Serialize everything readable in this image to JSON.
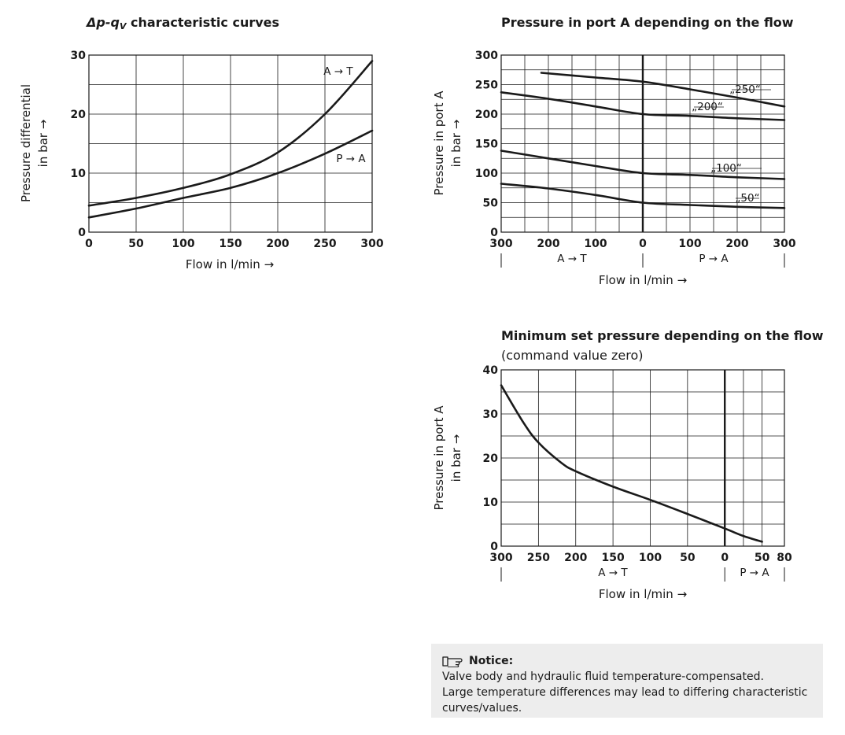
{
  "chart_data": [
    {
      "type": "line",
      "title_prefix": "Δp-q",
      "title_sub": "V",
      "title_rest": " characteristic curves",
      "xlabel": "Flow in l/min →",
      "ylabel": [
        "Pressure differential",
        "in bar →"
      ],
      "xlim": [
        0,
        300
      ],
      "ylim": [
        0,
        30
      ],
      "xticks": [
        "0",
        "50",
        "100",
        "150",
        "200",
        "250",
        "300"
      ],
      "yticks": [
        "0",
        "10",
        "20",
        "30"
      ],
      "grid": true,
      "series": [
        {
          "name": "A → T",
          "x": [
            0,
            50,
            100,
            150,
            200,
            250,
            300
          ],
          "y": [
            4.5,
            5.8,
            7.5,
            9.8,
            13.5,
            20,
            29
          ]
        },
        {
          "name": "P → A",
          "x": [
            0,
            50,
            100,
            150,
            200,
            250,
            300
          ],
          "y": [
            2.5,
            4,
            5.8,
            7.5,
            10,
            13.3,
            17.2
          ]
        }
      ]
    },
    {
      "type": "line",
      "title": "Pressure in port A depending on the flow",
      "xlabel": "Flow in l/min →",
      "ylabel": [
        "Pressure in port A",
        "in bar →"
      ],
      "xlim": [
        -300,
        300
      ],
      "ylim": [
        0,
        300
      ],
      "xticks": [
        "300",
        "200",
        "100",
        "0",
        "100",
        "200",
        "300"
      ],
      "yticks": [
        "0",
        "50",
        "100",
        "150",
        "200",
        "250",
        "300"
      ],
      "x_regions": [
        "A → T",
        "P → A"
      ],
      "grid": true,
      "series": [
        {
          "name": "„250“",
          "x": [
            -215,
            -100,
            0,
            100,
            200,
            300
          ],
          "y": [
            270,
            262,
            255,
            242,
            228,
            213
          ]
        },
        {
          "name": "„200“",
          "x": [
            -300,
            -200,
            -100,
            0,
            100,
            200,
            300
          ],
          "y": [
            237,
            226,
            213,
            200,
            197,
            193,
            190
          ]
        },
        {
          "name": "„100“",
          "x": [
            -300,
            -200,
            -100,
            0,
            100,
            200,
            300
          ],
          "y": [
            138,
            125,
            112,
            100,
            97,
            93,
            90
          ]
        },
        {
          "name": "„50“",
          "x": [
            -300,
            -200,
            -100,
            0,
            100,
            200,
            300
          ],
          "y": [
            82,
            74,
            63,
            50,
            46,
            43,
            41
          ]
        }
      ]
    },
    {
      "type": "line",
      "title": "Minimum set pressure depending on the flow",
      "subtitle": "(command value zero)",
      "xlabel": "Flow in l/min →",
      "ylabel": [
        "Pressure in port A",
        "in bar →"
      ],
      "xlim": [
        -300,
        80
      ],
      "ylim": [
        0,
        40
      ],
      "xticks": [
        "300",
        "250",
        "200",
        "150",
        "100",
        "50",
        "0",
        "50",
        "80"
      ],
      "yticks": [
        "0",
        "10",
        "20",
        "30",
        "40"
      ],
      "x_regions": [
        "A → T",
        "P → A"
      ],
      "grid": true,
      "series": [
        {
          "x": [
            -300,
            -270,
            -250,
            -220,
            -200,
            -150,
            -100,
            -50,
            0,
            25,
            50
          ],
          "y": [
            36.5,
            28,
            23.5,
            19,
            17,
            13.5,
            10.5,
            7.3,
            4,
            2.3,
            1
          ]
        }
      ]
    }
  ],
  "notice": {
    "heading": "Notice:",
    "lines": [
      "Valve body and hydraulic fluid temperature-compensated.",
      "Large temperature differences may lead to differing characteristic",
      "curves/values."
    ],
    "icon": "pointing-hand-icon"
  }
}
